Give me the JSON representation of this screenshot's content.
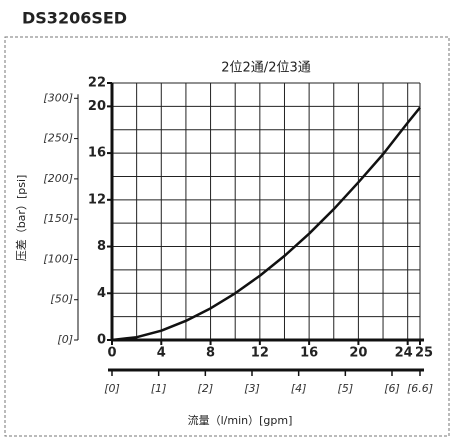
{
  "chart_data": {
    "type": "line",
    "title": "DS3206SED",
    "subtitle": "2位2通/2位3通",
    "x_label": "流量（l/min）[gpm]",
    "y_label": "压差（bar）[psi]",
    "x": [
      0,
      2,
      4,
      6,
      8,
      10,
      12,
      14,
      16,
      18,
      20,
      22,
      24,
      25
    ],
    "series": [
      {
        "color": "#111111",
        "values": [
          0,
          0.24,
          0.8,
          1.64,
          2.71,
          4.0,
          5.5,
          7.2,
          9.1,
          11.2,
          13.5,
          15.9,
          18.6,
          19.9
        ]
      }
    ],
    "xlim": [
      0,
      25
    ],
    "xticks": [
      0,
      4,
      8,
      12,
      16,
      20,
      24,
      25
    ],
    "ylim": [
      0,
      22
    ],
    "yticks": [
      0,
      4,
      8,
      12,
      16,
      20,
      22
    ],
    "xgrid": [
      0,
      2,
      4,
      6,
      8,
      10,
      12,
      14,
      16,
      18,
      20,
      22,
      24,
      25
    ],
    "ygrid": [
      2,
      4,
      6,
      8,
      10,
      12,
      14,
      16,
      18,
      20,
      22
    ],
    "y2lim": [
      0,
      319
    ],
    "y2ticks": [
      {
        "value": 0,
        "label": "[0]"
      },
      {
        "value": 50,
        "label": "[50]"
      },
      {
        "value": 100,
        "label": "[100]"
      },
      {
        "value": 150,
        "label": "[150]"
      },
      {
        "value": 200,
        "label": "[200]"
      },
      {
        "value": 250,
        "label": "[250]"
      },
      {
        "value": 300,
        "label": "[300]"
      }
    ],
    "x2lim": [
      0,
      6.6
    ],
    "x2ticks": [
      {
        "value": 0,
        "label": "[0]"
      },
      {
        "value": 1,
        "label": "[1]"
      },
      {
        "value": 2,
        "label": "[2]"
      },
      {
        "value": 3,
        "label": "[3]"
      },
      {
        "value": 4,
        "label": "[4]"
      },
      {
        "value": 5,
        "label": "[5]"
      },
      {
        "value": 6,
        "label": "[6]"
      },
      {
        "value": 6.6,
        "label": "[6.6]"
      }
    ],
    "grid": true
  }
}
